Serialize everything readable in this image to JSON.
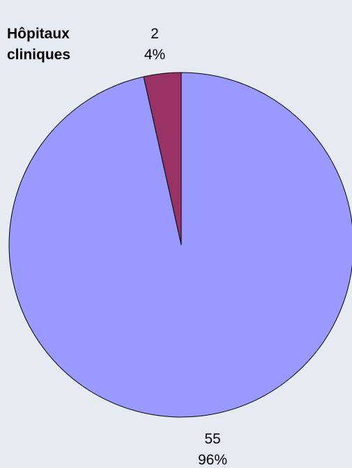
{
  "chart_data": {
    "type": "pie",
    "title": "",
    "categories": [
      "Hôpitaux cliniques",
      ""
    ],
    "values": [
      2,
      55
    ],
    "percent_labels": [
      "4%",
      "96%"
    ],
    "colors": [
      "#993366",
      "#9999ff"
    ],
    "legend": "none",
    "category_label_lines": [
      "Hôpitaux",
      "cliniques"
    ]
  }
}
